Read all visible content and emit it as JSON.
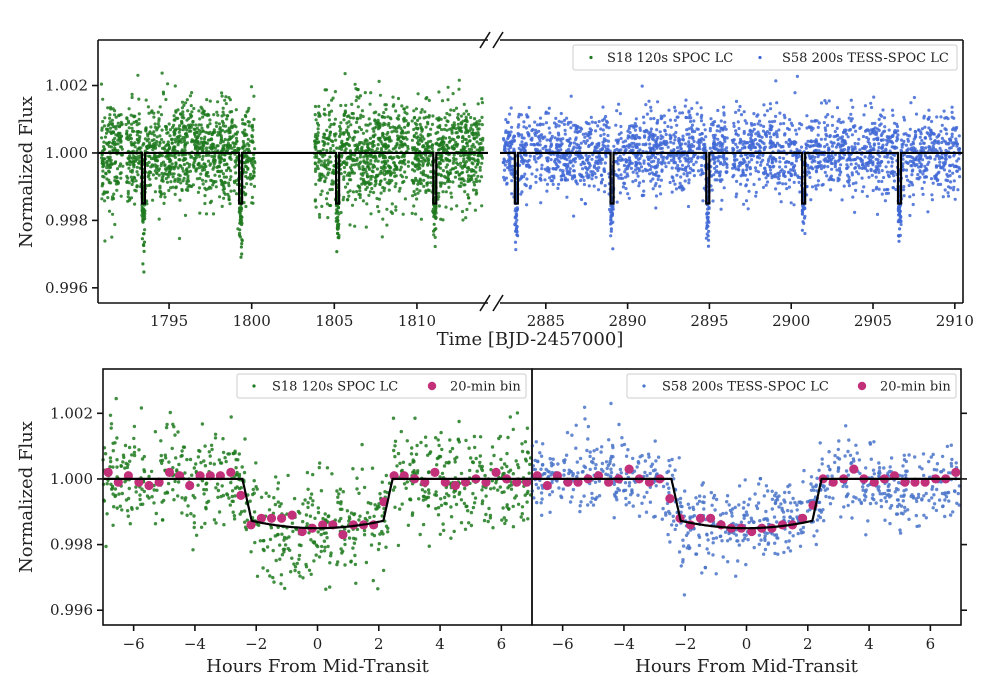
{
  "chart_data": [
    {
      "id": "full_lightcurve",
      "type": "scatter",
      "title": "",
      "xlabel": "Time [BJD-2457000]",
      "ylabel": "Normalized Flux",
      "broken_x_axis": true,
      "segments": [
        {
          "xlim": [
            1790.7,
            1814.3
          ],
          "xticks": [
            1795,
            1800,
            1805,
            1810
          ]
        },
        {
          "xlim": [
            2882.2,
            2910.5
          ],
          "xticks": [
            2885,
            2890,
            2895,
            2900,
            2905,
            2910
          ]
        }
      ],
      "ylim": [
        0.99555,
        1.00335
      ],
      "yticks": [
        0.996,
        0.998,
        1.0,
        1.002
      ],
      "ytick_labels": [
        "0.996",
        "0.998",
        "1.000",
        "1.002"
      ],
      "legend": {
        "placement": "top-right",
        "columns": 2,
        "entries": [
          "S18 120s SPOC LC",
          "S58 200s TESS-SPOC LC"
        ]
      },
      "series": [
        {
          "name": "S18 120s SPOC LC",
          "color": "#1f7a1f",
          "segment": 0,
          "data_ranges": [
            [
              1790.9,
              1792.2
            ],
            [
              1792.4,
              1800.2
            ],
            [
              1803.8,
              1809.5
            ],
            [
              1809.7,
              1814.0
            ]
          ],
          "scatter_sigma": 0.00075,
          "transit_times": [
            1793.45,
            1799.33,
            1805.2,
            1811.08
          ],
          "transit_depth": 0.0015
        },
        {
          "name": "S58 200s TESS-SPOC LC",
          "color": "#4169d6",
          "segment": 1,
          "data_ranges": [
            [
              2882.4,
              2896.1
            ],
            [
              2896.4,
              2910.3
            ]
          ],
          "scatter_sigma": 0.0006,
          "transit_times": [
            2883.2,
            2889.05,
            2894.9,
            2900.76,
            2906.62
          ],
          "transit_depth": 0.0015
        }
      ],
      "model": {
        "name": "transit model",
        "color": "#000000",
        "baseline": 1.0,
        "depth": 0.0015
      }
    },
    {
      "id": "phase_folded_s18",
      "type": "scatter",
      "xlabel": "Hours From Mid-Transit",
      "ylabel": "Normalized Flux",
      "xlim": [
        -7,
        7
      ],
      "xticks": [
        -6,
        -4,
        -2,
        0,
        2,
        4,
        6
      ],
      "xtick_labels": [
        "−6",
        "−4",
        "−2",
        "0",
        "2",
        "4",
        "6"
      ],
      "ylim": [
        0.99555,
        1.00335
      ],
      "yticks": [
        0.996,
        0.998,
        1.0,
        1.002
      ],
      "ytick_labels": [
        "0.996",
        "0.998",
        "1.000",
        "1.002"
      ],
      "legend": {
        "placement": "top-right",
        "columns": 2,
        "entries": [
          "S18 120s SPOC LC",
          "20-min bin"
        ]
      },
      "raw_series": {
        "name": "S18 120s SPOC LC",
        "color": "#1f7a1f",
        "scatter_sigma": 0.0008
      },
      "binned_series": {
        "name": "20-min bin",
        "color": "#c2307a",
        "x": [
          -6.83,
          -6.5,
          -6.17,
          -5.83,
          -5.5,
          -5.17,
          -4.83,
          -4.5,
          -4.17,
          -3.83,
          -3.5,
          -3.17,
          -2.83,
          -2.5,
          -2.17,
          -1.83,
          -1.5,
          -1.17,
          -0.83,
          -0.5,
          -0.17,
          0.17,
          0.5,
          0.83,
          1.17,
          1.5,
          1.83,
          2.17,
          2.5,
          2.83,
          3.17,
          3.5,
          3.83,
          4.17,
          4.5,
          4.83,
          5.17,
          5.5,
          5.83,
          6.17,
          6.5,
          6.83
        ],
        "y": [
          1.0002,
          0.9999,
          1.0001,
          0.9999,
          0.9998,
          0.9999,
          1.0002,
          1.0001,
          0.9998,
          1.0001,
          1.0001,
          1.0001,
          1.0002,
          0.9995,
          0.9986,
          0.9988,
          0.9988,
          0.9988,
          0.9989,
          0.9984,
          0.9985,
          0.9986,
          0.9986,
          0.9983,
          0.9986,
          0.9986,
          0.9986,
          0.9993,
          1.0001,
          1.0001,
          1.0,
          0.9999,
          1.0002,
          0.9999,
          0.9998,
          0.9999,
          1.0,
          0.9999,
          1.0002,
          1.0,
          0.9999,
          0.9999
        ]
      },
      "model": {
        "color": "#000000",
        "baseline": 1.0,
        "depth": 0.0015,
        "t14_hours": 4.9,
        "ingress_hours": 0.3
      }
    },
    {
      "id": "phase_folded_s58",
      "type": "scatter",
      "xlabel": "Hours From Mid-Transit",
      "ylabel": "",
      "xlim": [
        -7,
        7
      ],
      "xticks": [
        -6,
        -4,
        -2,
        0,
        2,
        4,
        6
      ],
      "xtick_labels": [
        "−6",
        "−4",
        "−2",
        "0",
        "2",
        "4",
        "6"
      ],
      "ylim": [
        0.99555,
        1.00335
      ],
      "yticks": [
        0.996,
        0.998,
        1.0,
        1.002
      ],
      "yticks_side": "right",
      "legend": {
        "placement": "top-right",
        "columns": 2,
        "entries": [
          "S58 200s TESS-SPOC LC",
          "20-min bin"
        ]
      },
      "raw_series": {
        "name": "S58 200s TESS-SPOC LC",
        "color": "#4a74c9",
        "scatter_sigma": 0.0006
      },
      "binned_series": {
        "name": "20-min bin",
        "color": "#c2307a",
        "x": [
          -6.83,
          -6.5,
          -6.17,
          -5.83,
          -5.5,
          -5.17,
          -4.83,
          -4.5,
          -4.17,
          -3.83,
          -3.5,
          -3.17,
          -2.83,
          -2.5,
          -2.17,
          -1.83,
          -1.5,
          -1.17,
          -0.83,
          -0.5,
          -0.17,
          0.17,
          0.5,
          0.83,
          1.17,
          1.5,
          1.83,
          2.17,
          2.5,
          2.83,
          3.17,
          3.5,
          3.83,
          4.17,
          4.5,
          4.83,
          5.17,
          5.5,
          5.83,
          6.17,
          6.5,
          6.83
        ],
        "y": [
          1.0001,
          0.9998,
          1.0001,
          0.9999,
          0.9999,
          1.0,
          1.0001,
          0.9999,
          1.0,
          1.0003,
          1.0,
          0.9999,
          1.0,
          0.9994,
          0.9988,
          0.9986,
          0.9988,
          0.9988,
          0.9986,
          0.9985,
          0.9985,
          0.9984,
          0.9985,
          0.9985,
          0.9986,
          0.9986,
          0.9988,
          0.9992,
          1.0,
          0.9999,
          1.0,
          1.0003,
          1.0,
          0.9999,
          1.0,
          1.0001,
          0.9999,
          0.9999,
          0.9999,
          1.0,
          1.0,
          1.0002
        ]
      },
      "model": {
        "color": "#000000",
        "baseline": 1.0,
        "depth": 0.0015,
        "t14_hours": 4.9,
        "ingress_hours": 0.3
      }
    }
  ]
}
